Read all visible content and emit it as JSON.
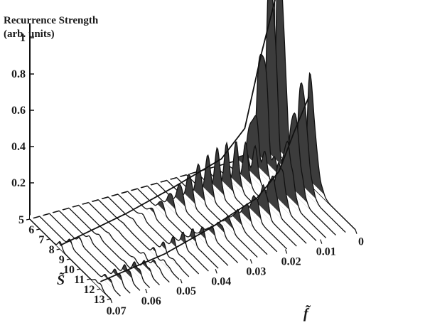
{
  "chart_data": {
    "type": "area",
    "projection": "3d-waterfall",
    "ylabel_line1": "Recurrence Strength",
    "ylabel_line2": "(arb. units)",
    "z_ticks": [
      "0.2",
      "0.4",
      "0.6",
      "0.8",
      "1"
    ],
    "z_range": [
      0,
      1
    ],
    "s_axis_label": "S̃",
    "s_ticks": [
      "5",
      "6",
      "7",
      "8",
      "9",
      "10",
      "11",
      "12",
      "13"
    ],
    "s_range": [
      5,
      13
    ],
    "f_axis_label": "f̃",
    "f_ticks": [
      "0.07",
      "0.06",
      "0.05",
      "0.04",
      "0.03",
      "0.02",
      "0.01",
      "0"
    ],
    "f_range": [
      0.07,
      0
    ],
    "f_slices": 26,
    "ridges": [
      {
        "peaks": [
          {
            "s": 8.0,
            "strength": 0.04,
            "f_center": 0.07,
            "f_spread": 0.012
          },
          {
            "s": 7.5,
            "strength": 0.08,
            "f_center": 0.03,
            "f_spread": 0.013
          },
          {
            "s": 7.2,
            "strength": 0.13,
            "f_center": 0.025,
            "f_spread": 0.012
          },
          {
            "s": 7.0,
            "strength": 0.17,
            "f_center": 0.018,
            "f_spread": 0.012
          },
          {
            "s": 6.8,
            "strength": 0.08,
            "f_center": 0.012,
            "f_spread": 0.01
          },
          {
            "s": 6.2,
            "strength": 0.38,
            "f_center": 0.004,
            "f_spread": 0.006
          },
          {
            "s": 5.9,
            "strength": 0.55,
            "f_center": 0.002,
            "f_spread": 0.006
          },
          {
            "s": 5.6,
            "strength": 0.7,
            "f_center": 0.001,
            "f_spread": 0.006
          },
          {
            "s": 5.3,
            "strength": 0.9,
            "f_center": 0.0,
            "f_spread": 0.006
          }
        ],
        "envelope": [
          [
            0.07,
            0.02
          ],
          [
            0.05,
            0.06
          ],
          [
            0.035,
            0.1
          ],
          [
            0.02,
            0.15
          ],
          [
            0.012,
            0.25
          ],
          [
            0.006,
            0.6
          ],
          [
            0.0,
            0.9
          ]
        ]
      },
      {
        "peaks": [
          {
            "s": 12.0,
            "strength": 0.05,
            "f_center": 0.062,
            "f_spread": 0.01
          },
          {
            "s": 11.5,
            "strength": 0.06,
            "f_center": 0.06,
            "f_spread": 0.01
          },
          {
            "s": 10.5,
            "strength": 0.08,
            "f_center": 0.04,
            "f_spread": 0.012
          },
          {
            "s": 10.1,
            "strength": 0.1,
            "f_center": 0.02,
            "f_spread": 0.012
          },
          {
            "s": 9.7,
            "strength": 0.18,
            "f_center": 0.012,
            "f_spread": 0.01
          },
          {
            "s": 9.3,
            "strength": 0.25,
            "f_center": 0.007,
            "f_spread": 0.008
          },
          {
            "s": 9.0,
            "strength": 0.33,
            "f_center": 0.004,
            "f_spread": 0.006
          },
          {
            "s": 8.7,
            "strength": 0.4,
            "f_center": 0.002,
            "f_spread": 0.006
          },
          {
            "s": 8.4,
            "strength": 0.48,
            "f_center": 0.0,
            "f_spread": 0.006
          }
        ],
        "envelope": [
          [
            0.07,
            0.04
          ],
          [
            0.05,
            0.05
          ],
          [
            0.035,
            0.08
          ],
          [
            0.02,
            0.13
          ],
          [
            0.012,
            0.2
          ],
          [
            0.006,
            0.35
          ],
          [
            0.0,
            0.48
          ]
        ]
      }
    ],
    "grid": false,
    "legend": "none"
  }
}
